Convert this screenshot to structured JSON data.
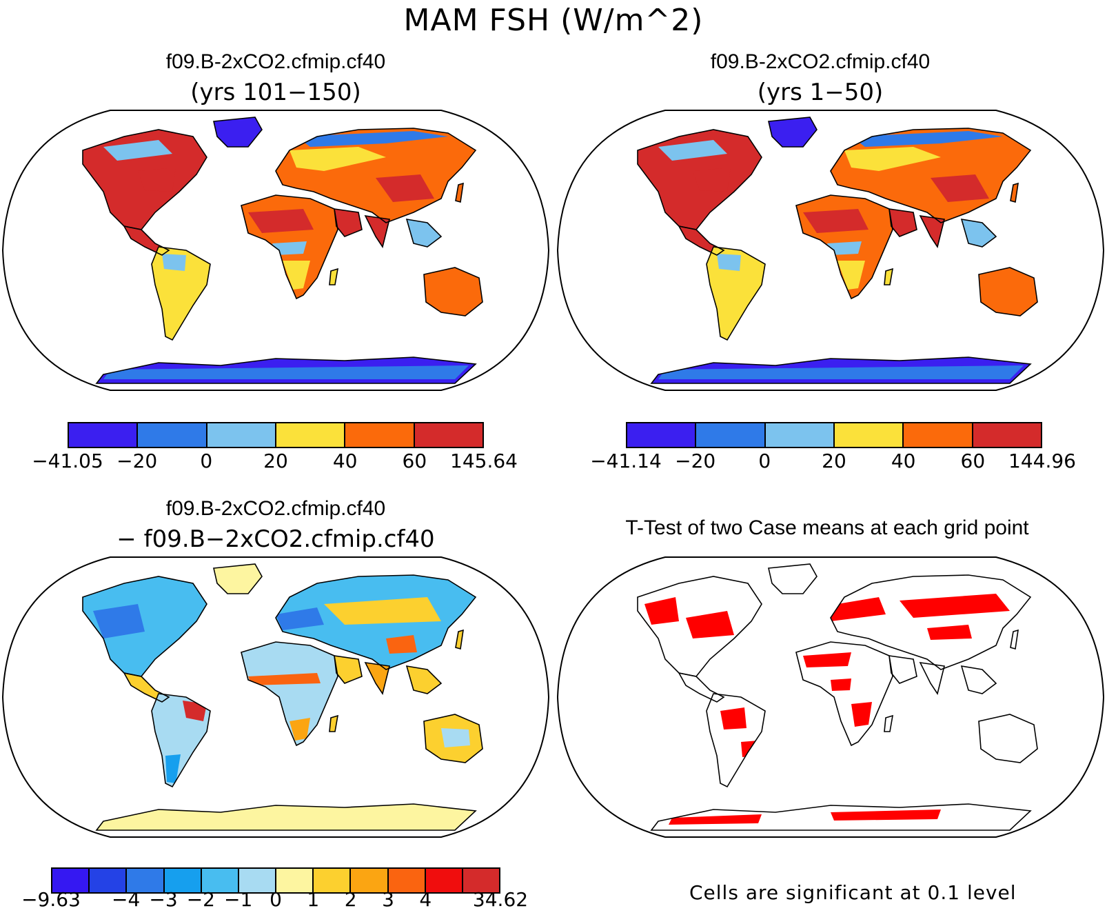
{
  "title": "MAM FSH (W/m^2)",
  "panels": [
    {
      "id": "p1",
      "title": "f09.B-2xCO2.cfmip.cf40",
      "subtitle": "(yrs 101−150)"
    },
    {
      "id": "p2",
      "title": "f09.B-2xCO2.cfmip.cf40",
      "subtitle": "(yrs 1−50)"
    },
    {
      "id": "p3",
      "title": "f09.B-2xCO2.cfmip.cf40",
      "subtitle": "− f09.B−2xCO2.cfmip.cf40"
    },
    {
      "id": "p4",
      "title": "T-Test of two Case means at each grid point",
      "subtitle": ""
    }
  ],
  "colorbars": [
    {
      "id": "cb1",
      "colors": [
        "#3b1ff0",
        "#2f7ae8",
        "#7cc3ee",
        "#fbe13a",
        "#fb6a0b",
        "#d42b2b"
      ],
      "labels": [
        "−41.05",
        "−20",
        "0",
        "20",
        "40",
        "60",
        "145.64"
      ]
    },
    {
      "id": "cb2",
      "colors": [
        "#3b1ff0",
        "#2f7ae8",
        "#7cc3ee",
        "#fbe13a",
        "#fb6a0b",
        "#d42b2b"
      ],
      "labels": [
        "−41.14",
        "−20",
        "0",
        "20",
        "40",
        "60",
        "144.96"
      ]
    },
    {
      "id": "cb3",
      "colors": [
        "#3518f2",
        "#2442e6",
        "#2f7ae8",
        "#169fee",
        "#48bdf0",
        "#a8dbf2",
        "#fdf5a0",
        "#fcd02f",
        "#fba512",
        "#fa6410",
        "#f00d0d",
        "#d42b2b"
      ],
      "labels": [
        "−9.63",
        "−4",
        "−3",
        "−2",
        "−1",
        "0",
        "1",
        "2",
        "3",
        "4",
        "34.62"
      ]
    }
  ],
  "significance_note": "Cells are significant at 0.1 level",
  "significance_color": "#ff0000"
}
